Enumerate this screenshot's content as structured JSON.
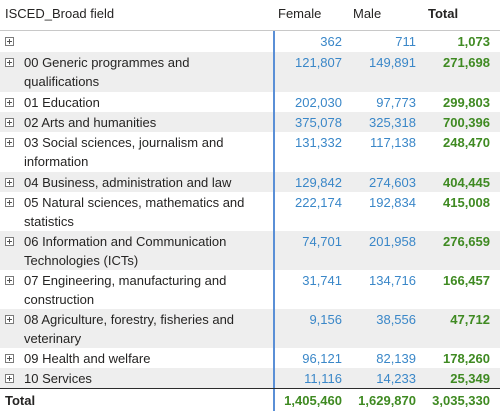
{
  "header": {
    "field": "ISCED_Broad field",
    "female": "Female",
    "male": "Male",
    "total": "Total"
  },
  "rows": [
    {
      "label": "",
      "female": "362",
      "male": "711",
      "total": "1,073"
    },
    {
      "label": "00 Generic programmes and qualifications",
      "female": "121,807",
      "male": "149,891",
      "total": "271,698"
    },
    {
      "label": "01 Education",
      "female": "202,030",
      "male": "97,773",
      "total": "299,803"
    },
    {
      "label": "02 Arts and humanities",
      "female": "375,078",
      "male": "325,318",
      "total": "700,396"
    },
    {
      "label": "03 Social sciences, journalism and information",
      "female": "131,332",
      "male": "117,138",
      "total": "248,470"
    },
    {
      "label": "04 Business, administration and law",
      "female": "129,842",
      "male": "274,603",
      "total": "404,445"
    },
    {
      "label": "05 Natural sciences, mathematics and statistics",
      "female": "222,174",
      "male": "192,834",
      "total": "415,008"
    },
    {
      "label": "06 Information and Communication Technologies (ICTs)",
      "female": "74,701",
      "male": "201,958",
      "total": "276,659"
    },
    {
      "label": "07 Engineering, manufacturing and construction",
      "female": "31,741",
      "male": "134,716",
      "total": "166,457"
    },
    {
      "label": "08 Agriculture, forestry, fisheries and veterinary",
      "female": "9,156",
      "male": "38,556",
      "total": "47,712"
    },
    {
      "label": "09 Health and welfare",
      "female": "96,121",
      "male": "82,139",
      "total": "178,260"
    },
    {
      "label": "10 Services",
      "female": "11,116",
      "male": "14,233",
      "total": "25,349"
    }
  ],
  "total_row": {
    "label": "Total",
    "female": "1,405,460",
    "male": "1,629,870",
    "total": "3,035,330"
  },
  "colors": {
    "value_blue": "#3a87c8",
    "total_green": "#3f8a22",
    "divider_blue": "#5a8fd6",
    "stripe": "#eeeeee"
  },
  "icons": {
    "expander": "plus-square-icon"
  }
}
